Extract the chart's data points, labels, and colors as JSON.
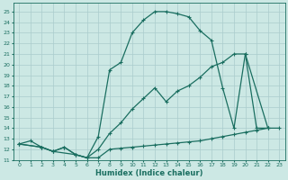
{
  "bg_color": "#cce8e4",
  "grid_color": "#aacccc",
  "line_color": "#1a6e60",
  "line_width": 0.9,
  "marker": "+",
  "marker_size": 3.5,
  "marker_lw": 0.8,
  "xlabel": "Humidex (Indice chaleur)",
  "xlabel_fontsize": 6.0,
  "xlim": [
    -0.5,
    23.5
  ],
  "ylim": [
    11,
    25.8
  ],
  "xticks": [
    0,
    1,
    2,
    3,
    4,
    5,
    6,
    7,
    8,
    9,
    10,
    11,
    12,
    13,
    14,
    15,
    16,
    17,
    18,
    19,
    20,
    21,
    22,
    23
  ],
  "yticks": [
    11,
    12,
    13,
    14,
    15,
    16,
    17,
    18,
    19,
    20,
    21,
    22,
    23,
    24,
    25
  ],
  "curve1_x": [
    0,
    1,
    2,
    3,
    4,
    5,
    6,
    7,
    8,
    9,
    10,
    11,
    12,
    13,
    14,
    15,
    16,
    17,
    18,
    19,
    20,
    22
  ],
  "curve1_y": [
    12.5,
    12.8,
    12.2,
    11.8,
    12.2,
    11.5,
    11.2,
    13.2,
    19.5,
    20.2,
    23.0,
    24.2,
    25.0,
    25.0,
    24.8,
    24.5,
    23.2,
    22.3,
    17.8,
    14.0,
    21.0,
    14.0
  ],
  "curve2_x": [
    0,
    2,
    3,
    4,
    5,
    6,
    7,
    8,
    9,
    10,
    11,
    12,
    13,
    14,
    15,
    16,
    17,
    18,
    19,
    20,
    21,
    22
  ],
  "curve2_y": [
    12.5,
    12.2,
    11.8,
    12.2,
    11.5,
    11.2,
    12.0,
    13.5,
    14.5,
    15.8,
    16.8,
    17.8,
    16.5,
    17.5,
    18.0,
    18.8,
    19.8,
    20.2,
    21.0,
    21.0,
    14.0,
    14.0
  ],
  "curve3_x": [
    0,
    2,
    3,
    5,
    6,
    7,
    8,
    9,
    10,
    11,
    12,
    13,
    14,
    15,
    16,
    17,
    18,
    19,
    20,
    21,
    22,
    23
  ],
  "curve3_y": [
    12.5,
    12.2,
    11.8,
    11.5,
    11.2,
    11.2,
    12.0,
    12.1,
    12.2,
    12.3,
    12.4,
    12.5,
    12.6,
    12.7,
    12.8,
    13.0,
    13.2,
    13.4,
    13.6,
    13.8,
    14.0,
    14.0
  ]
}
